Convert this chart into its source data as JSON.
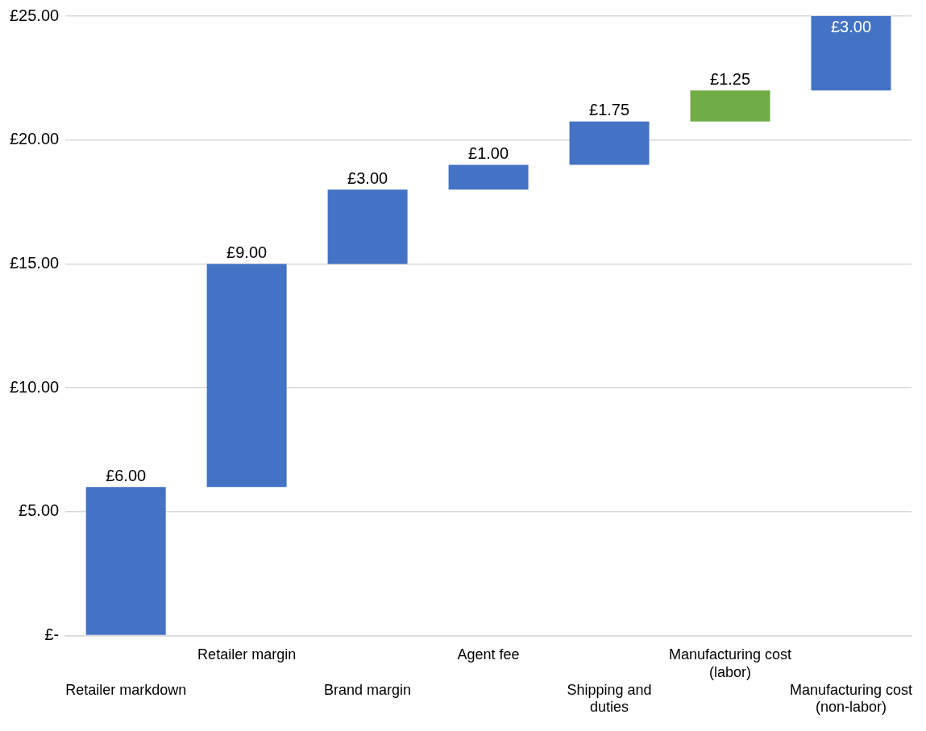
{
  "chart_data": {
    "type": "bar",
    "categories": [
      "Retailer markdown",
      "Retailer margin",
      "Brand margin",
      "Agent fee",
      "Shipping and duties",
      "Manufacturing cost (labor)",
      "Manufacturing cost (non-labor)"
    ],
    "values": [
      6,
      9,
      3,
      1,
      1.75,
      1.25,
      3
    ],
    "base": [
      0,
      6,
      15,
      18,
      19,
      20.75,
      22
    ],
    "colors": [
      "#4472c4",
      "#4472c4",
      "#4472c4",
      "#4472c4",
      "#4472c4",
      "#70ad47",
      "#4472c4"
    ],
    "value_labels": [
      "£6.00",
      "£9.00",
      "£3.00",
      "£1.00",
      "£1.75",
      "£1.25",
      "£3.00"
    ],
    "ylim": [
      0,
      25
    ],
    "yticks": [
      {
        "value": 0,
        "label": "£-"
      },
      {
        "value": 5,
        "label": "£5.00"
      },
      {
        "value": 10,
        "label": "£10.00"
      },
      {
        "value": 15,
        "label": "£15.00"
      },
      {
        "value": 20,
        "label": "£20.00"
      },
      {
        "value": 25,
        "label": "£25.00"
      }
    ],
    "grid": "y"
  }
}
